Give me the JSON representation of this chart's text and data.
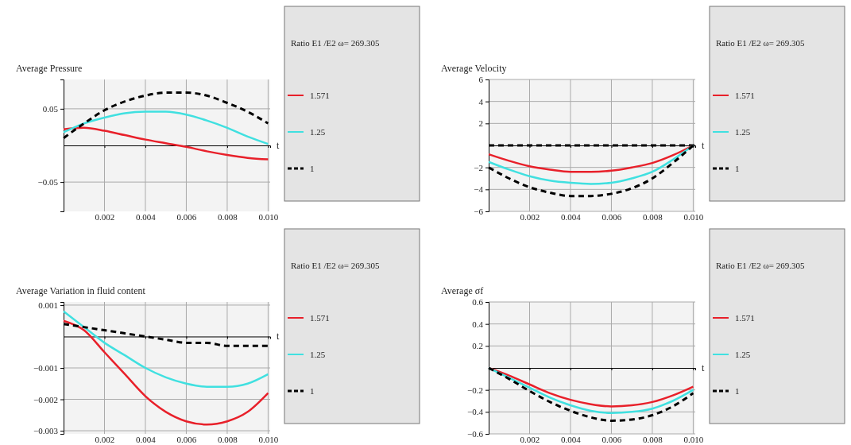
{
  "chart_data": [
    {
      "type": "line",
      "title": "Average  Pressure",
      "xlabel": "t",
      "legend_title": "Ratio  E1 /E2  ω= 269.305",
      "legend": "right",
      "grid": true,
      "line_style": "solid",
      "x": [
        0,
        0.001,
        0.002,
        0.003,
        0.004,
        0.005,
        0.006,
        0.007,
        0.008,
        0.009,
        0.01
      ],
      "xlim": [
        0,
        0.0101
      ],
      "xticks": [
        {
          "value": 0.002,
          "label": "0.002"
        },
        {
          "value": 0.004,
          "label": "0.004"
        },
        {
          "value": 0.006,
          "label": "0.006"
        },
        {
          "value": 0.008,
          "label": "0.008"
        },
        {
          "value": 0.01,
          "label": "0.010"
        }
      ],
      "ylim": [
        -0.09,
        0.09
      ],
      "yticks": [
        {
          "value": -0.05,
          "label": "−0.05"
        },
        0.05
      ],
      "series": [
        {
          "name": "1.571",
          "color": "#e8202a",
          "values": [
            0.022,
            0.024,
            0.02,
            0.014,
            0.008,
            0.003,
            -0.002,
            -0.008,
            -0.013,
            -0.017,
            -0.019
          ]
        },
        {
          "name": "1.25",
          "color": "#40e0e0",
          "values": [
            0.018,
            0.03,
            0.038,
            0.044,
            0.046,
            0.046,
            0.042,
            0.034,
            0.024,
            0.012,
            0.002
          ]
        },
        {
          "name": "1",
          "color": "#000000",
          "line_style": "dashed",
          "values": [
            0.01,
            0.03,
            0.048,
            0.06,
            0.068,
            0.072,
            0.072,
            0.068,
            0.058,
            0.046,
            0.03
          ]
        }
      ]
    },
    {
      "type": "line",
      "title": "Average  Velocity",
      "xlabel": "t",
      "legend_title": "Ratio  E1 /E2  ω= 269.305",
      "legend": "right",
      "grid": true,
      "line_style": "solid",
      "x": [
        0,
        0.001,
        0.002,
        0.003,
        0.004,
        0.005,
        0.006,
        0.007,
        0.008,
        0.009,
        0.01
      ],
      "xlim": [
        0,
        0.0101
      ],
      "xticks": [
        {
          "value": 0.002,
          "label": "0.002"
        },
        {
          "value": 0.004,
          "label": "0.004"
        },
        {
          "value": 0.006,
          "label": "0.006"
        },
        {
          "value": 0.008,
          "label": "0.008"
        },
        {
          "value": 0.01,
          "label": "0.010"
        }
      ],
      "ylim": [
        -6,
        6
      ],
      "yticks": [
        {
          "value": -6,
          "label": "−6"
        },
        {
          "value": -4,
          "label": "−4"
        },
        {
          "value": -2,
          "label": "−2"
        },
        2,
        4,
        6
      ],
      "ref_lines": [
        {
          "axis": "y",
          "value": 0,
          "color": "#000000",
          "line_style": "dashed"
        }
      ],
      "series": [
        {
          "name": "1.571",
          "color": "#e8202a",
          "values": [
            -0.8,
            -1.4,
            -1.9,
            -2.2,
            -2.4,
            -2.4,
            -2.3,
            -2.0,
            -1.6,
            -0.9,
            0
          ]
        },
        {
          "name": "1.25",
          "color": "#40e0e0",
          "values": [
            -1.5,
            -2.2,
            -2.8,
            -3.2,
            -3.4,
            -3.5,
            -3.4,
            -3.0,
            -2.4,
            -1.3,
            0
          ]
        },
        {
          "name": "1",
          "color": "#000000",
          "line_style": "dashed",
          "values": [
            -2.0,
            -3.0,
            -3.8,
            -4.3,
            -4.6,
            -4.6,
            -4.4,
            -3.9,
            -3.0,
            -1.6,
            0
          ]
        }
      ]
    },
    {
      "type": "line",
      "title": "Average  Variation  in fluid  content",
      "xlabel": "t",
      "legend_title": "Ratio  E1 /E2  ω= 269.305",
      "legend": "right",
      "grid": true,
      "line_style": "solid",
      "x": [
        0,
        0.001,
        0.002,
        0.003,
        0.004,
        0.005,
        0.006,
        0.007,
        0.008,
        0.009,
        0.01
      ],
      "xlim": [
        0,
        0.0101
      ],
      "xticks": [
        {
          "value": 0.002,
          "label": "0.002"
        },
        {
          "value": 0.004,
          "label": "0.004"
        },
        {
          "value": 0.006,
          "label": "0.006"
        },
        {
          "value": 0.008,
          "label": "0.008"
        },
        {
          "value": 0.01,
          "label": "0.010"
        }
      ],
      "ylim": [
        -0.0031,
        0.0011
      ],
      "yticks": [
        {
          "value": -0.003,
          "label": "−0.003"
        },
        {
          "value": -0.002,
          "label": "−0.002"
        },
        {
          "value": -0.001,
          "label": "−0.001"
        },
        0.001
      ],
      "series": [
        {
          "name": "1.571",
          "color": "#e8202a",
          "values": [
            0.0005,
            0.0002,
            -0.0005,
            -0.0012,
            -0.0019,
            -0.0024,
            -0.0027,
            -0.0028,
            -0.0027,
            -0.0024,
            -0.0018
          ]
        },
        {
          "name": "1.25",
          "color": "#40e0e0",
          "values": [
            0.0008,
            0.0003,
            -0.0002,
            -0.0006,
            -0.001,
            -0.0013,
            -0.0015,
            -0.0016,
            -0.0016,
            -0.0015,
            -0.0012
          ]
        },
        {
          "name": "1",
          "color": "#000000",
          "line_style": "dashed",
          "values": [
            0.0004,
            0.0003,
            0.0002,
            0.0001,
            0,
            -0.0001,
            -0.0002,
            -0.0002,
            -0.0003,
            -0.0003,
            -0.0003
          ]
        }
      ]
    },
    {
      "type": "line",
      "title": "Average  σf",
      "xlabel": "t",
      "legend_title": "Ratio  E1 /E2  ω= 269.305",
      "legend": "right",
      "grid": true,
      "line_style": "solid",
      "x": [
        0,
        0.001,
        0.002,
        0.003,
        0.004,
        0.005,
        0.006,
        0.007,
        0.008,
        0.009,
        0.01
      ],
      "xlim": [
        0,
        0.0101
      ],
      "xticks": [
        {
          "value": 0.002,
          "label": "0.002"
        },
        {
          "value": 0.004,
          "label": "0.004"
        },
        {
          "value": 0.006,
          "label": "0.006"
        },
        {
          "value": 0.008,
          "label": "0.008"
        },
        {
          "value": 0.01,
          "label": "0.010"
        }
      ],
      "ylim": [
        -0.6,
        0.6
      ],
      "yticks": [
        {
          "value": -0.6,
          "label": "−0.6"
        },
        {
          "value": -0.4,
          "label": "−0.4"
        },
        {
          "value": -0.2,
          "label": "−0.2"
        },
        0.2,
        0.4,
        0.6
      ],
      "series": [
        {
          "name": "1.571",
          "color": "#e8202a",
          "values": [
            0,
            -0.07,
            -0.15,
            -0.23,
            -0.29,
            -0.33,
            -0.35,
            -0.34,
            -0.31,
            -0.25,
            -0.17
          ]
        },
        {
          "name": "1.25",
          "color": "#40e0e0",
          "values": [
            0,
            -0.09,
            -0.18,
            -0.27,
            -0.34,
            -0.39,
            -0.41,
            -0.4,
            -0.37,
            -0.3,
            -0.2
          ]
        },
        {
          "name": "1",
          "color": "#000000",
          "line_style": "dashed",
          "values": [
            0,
            -0.1,
            -0.21,
            -0.31,
            -0.39,
            -0.45,
            -0.48,
            -0.47,
            -0.43,
            -0.35,
            -0.23
          ]
        }
      ]
    }
  ]
}
